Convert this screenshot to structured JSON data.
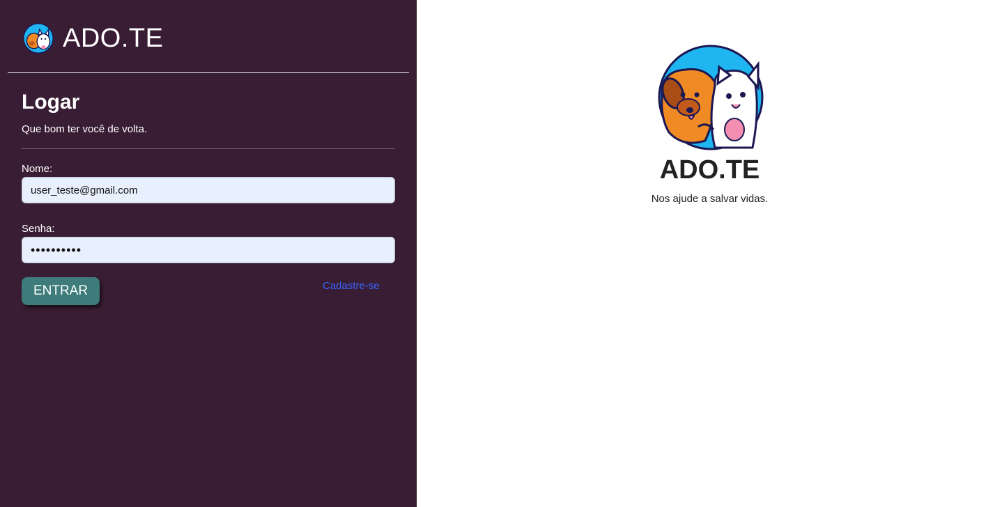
{
  "brand": {
    "title": "ADO.TE"
  },
  "login": {
    "heading": "Logar",
    "subtitle": "Que bom ter você de volta.",
    "name_label": "Nome:",
    "name_value": "user_teste@gmail.com",
    "password_label": "Senha:",
    "password_value": "••••••••••",
    "enter_label": "ENTRAR",
    "register_label": "Cadastre-se"
  },
  "hero": {
    "title": "ADO.TE",
    "subtitle": "Nos ajude a salvar vidas."
  },
  "colors": {
    "sidebar_bg": "#391d34",
    "button_bg": "#3e7b7b",
    "link": "#3a64ff",
    "input_bg": "#e8f0fe",
    "logo_circle": "#1fb5f0"
  },
  "icons": {
    "brand": "dog-cat-logo-icon",
    "hero": "dog-cat-logo-icon"
  }
}
